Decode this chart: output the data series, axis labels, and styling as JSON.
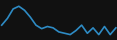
{
  "values": [
    16.5,
    19.0,
    22.5,
    23.5,
    22.0,
    19.5,
    16.5,
    15.2,
    16.0,
    15.5,
    14.0,
    13.5,
    13.0,
    14.5,
    16.5,
    13.5,
    15.5,
    13.0,
    16.0,
    13.0,
    15.5
  ],
  "line_color": "#2e8bc4",
  "background_color": "#111111",
  "linewidth": 1.2
}
